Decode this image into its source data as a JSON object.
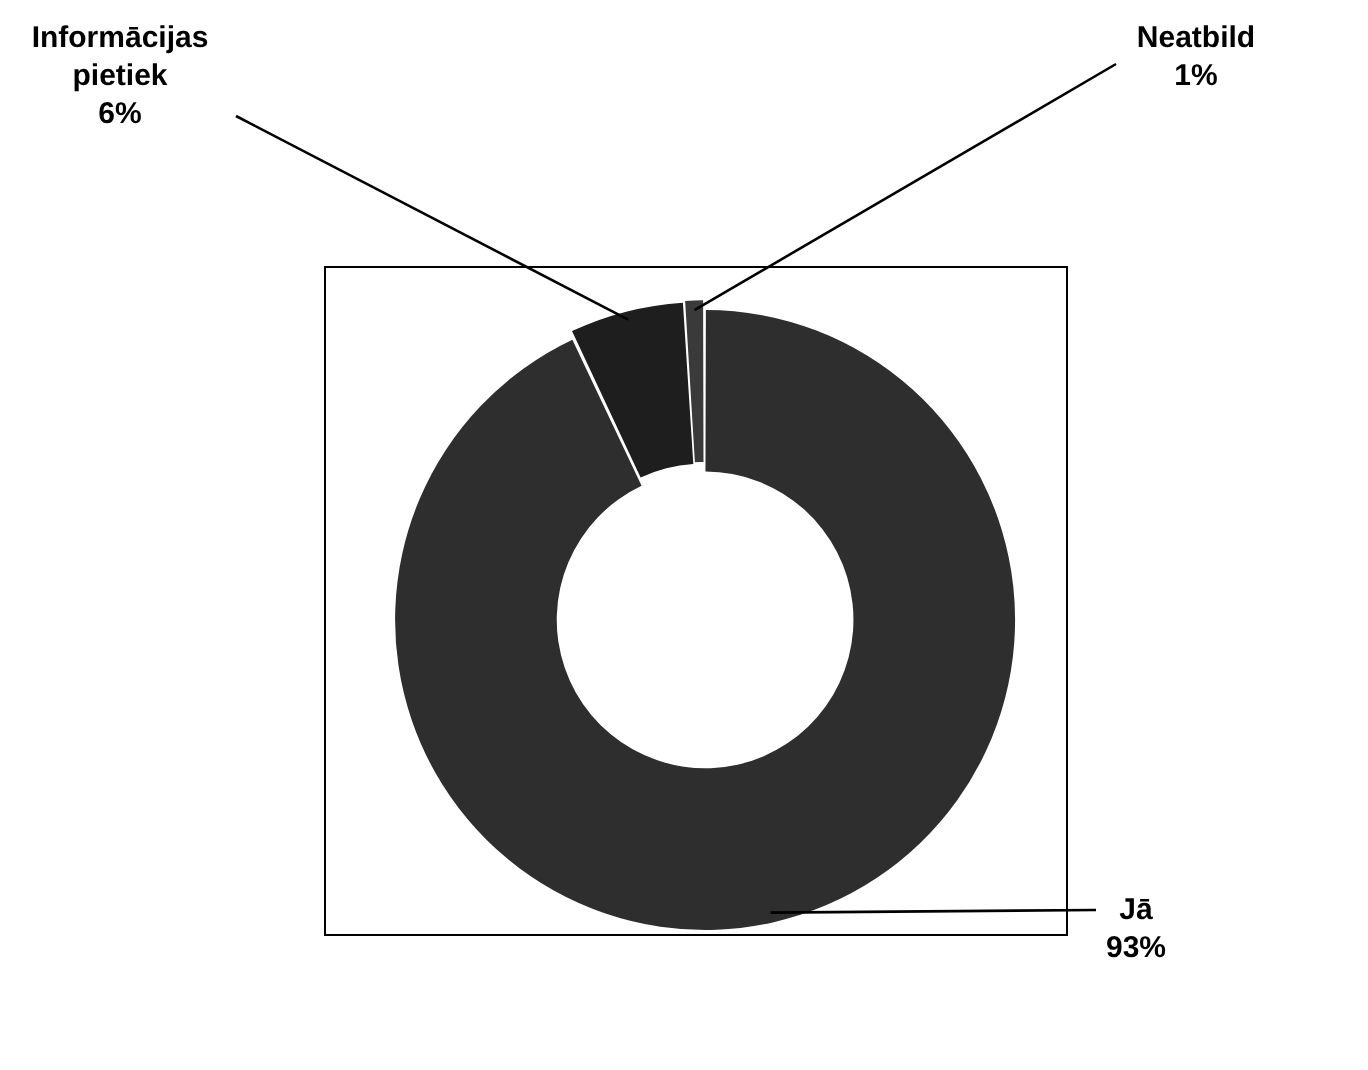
{
  "chart_data": {
    "type": "donut",
    "categories": [
      "Jā",
      "Informācijas pietiek",
      "Neatbild"
    ],
    "values": [
      93,
      6,
      1
    ],
    "value_labels": [
      "93%",
      "6%",
      "1%"
    ],
    "colors": [
      "#2e2e2e",
      "#1e1e1e",
      "#3a3a3a"
    ],
    "legend": false
  }
}
